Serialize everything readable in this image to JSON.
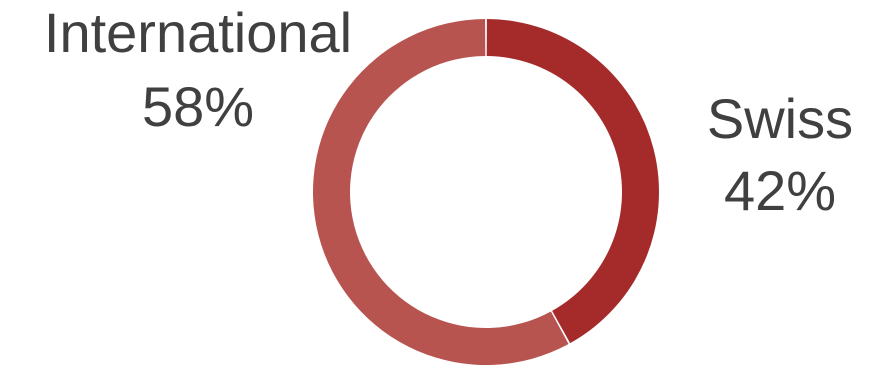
{
  "chart_data": {
    "type": "pie",
    "variant": "donut",
    "categories": [
      "Swiss",
      "International"
    ],
    "values": [
      42,
      58
    ],
    "labels": [
      "42%",
      "58%"
    ],
    "colors": [
      "#A52A2A",
      "#B85450"
    ],
    "title": "",
    "legend": "none"
  }
}
